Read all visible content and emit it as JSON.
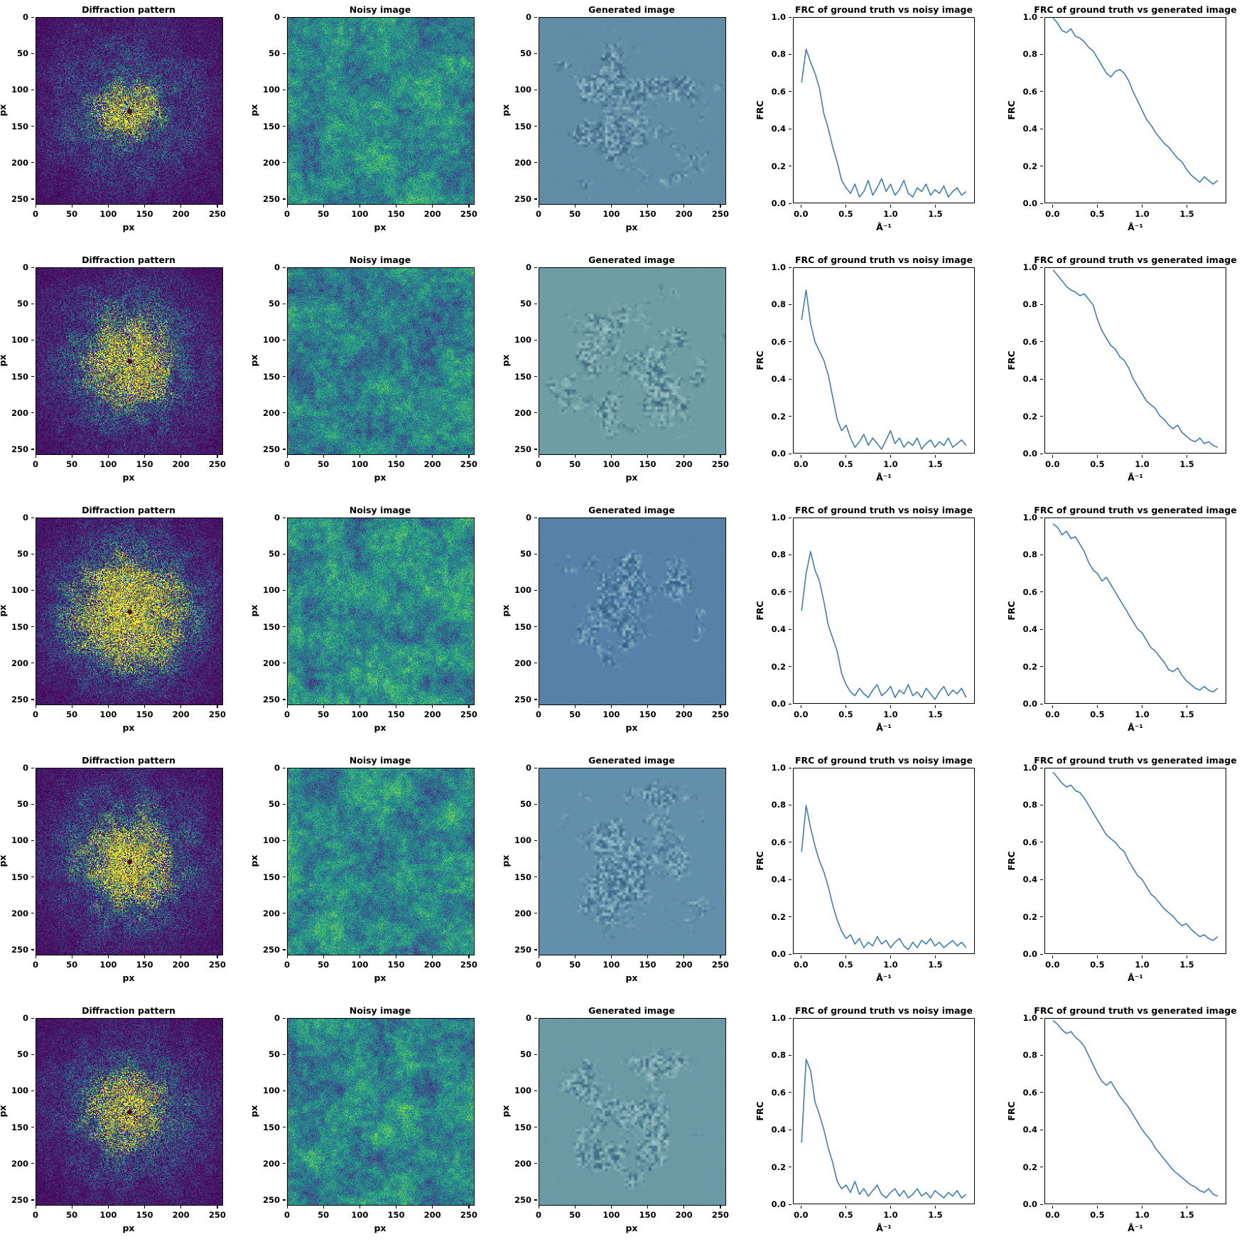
{
  "figure": {
    "rows": 5,
    "panel_titles": [
      "Diffraction pattern",
      "Noisy image",
      "Generated image",
      "FRC of ground truth vs noisy image",
      "FRC of ground truth vs generated image"
    ],
    "colormap": "viridis",
    "line_color": "#3f7cba",
    "image_axis": {
      "label": "px",
      "tick_labels": [
        "0",
        "50",
        "100",
        "150",
        "200",
        "250"
      ],
      "tick_values": [
        0,
        50,
        100,
        150,
        200,
        250
      ],
      "range": [
        0,
        256
      ]
    },
    "frc_axis": {
      "xlabel": "Å⁻¹",
      "ylabel": "FRC",
      "x_tick_labels": [
        "0.0",
        "0.5",
        "1.0",
        "1.5"
      ],
      "x_tick_values": [
        0,
        0.5,
        1.0,
        1.5
      ],
      "y_tick_labels": [
        "0.0",
        "0.2",
        "0.4",
        "0.6",
        "0.8",
        "1.0"
      ],
      "y_tick_values": [
        0,
        0.2,
        0.4,
        0.6,
        0.8,
        1.0
      ],
      "xlim": [
        -0.09,
        1.94
      ],
      "ylim": [
        0,
        1
      ]
    }
  },
  "image_panels": {
    "diffraction": {
      "description": "Speckled X-ray diffraction pattern: bright yellow central speckle cloud, dark red beamstop dot at center, dark purple background (viridis colormap), axes in px 0-255",
      "per_row": [
        {
          "seed": 101,
          "radius": 30,
          "amp": 1.0
        },
        {
          "seed": 202,
          "radius": 42,
          "amp": 1.15
        },
        {
          "seed": 303,
          "radius": 58,
          "amp": 1.25
        },
        {
          "seed": 404,
          "radius": 46,
          "amp": 1.15
        },
        {
          "seed": 505,
          "radius": 36,
          "amp": 1.05
        }
      ]
    },
    "noisy": {
      "description": "Low-SNR noisy real-space image, teal-green speckle with faint low-frequency blobs, axes in px 0-255",
      "per_row": [
        {
          "seed": 11
        },
        {
          "seed": 22
        },
        {
          "seed": 33
        },
        {
          "seed": 44
        },
        {
          "seed": 55
        }
      ]
    },
    "generated": {
      "description": "Generated (denoised) particle image: irregular textured particle blob on smooth blue background, axes in px 0-255",
      "per_row": [
        {
          "seed": 7,
          "bg": [
            97,
            141,
            166
          ]
        },
        {
          "seed": 17,
          "bg": [
            110,
            158,
            163
          ]
        },
        {
          "seed": 27,
          "bg": [
            86,
            130,
            168
          ]
        },
        {
          "seed": 37,
          "bg": [
            97,
            144,
            170
          ]
        },
        {
          "seed": 47,
          "bg": [
            106,
            154,
            164
          ]
        }
      ]
    }
  },
  "chart_data": {
    "type": "line",
    "xlabel": "Å⁻¹",
    "ylabel": "FRC",
    "x_start": 0,
    "x_step": 0.05,
    "n_points": 38,
    "xlim": [
      -0.09,
      1.94
    ],
    "ylim": [
      0,
      1
    ],
    "legend": "none",
    "grid": false,
    "rows": [
      {
        "noisy_frc": [
          0.65,
          0.83,
          0.76,
          0.7,
          0.62,
          0.48,
          0.4,
          0.3,
          0.22,
          0.12,
          0.08,
          0.05,
          0.1,
          0.03,
          0.06,
          0.12,
          0.04,
          0.08,
          0.13,
          0.06,
          0.1,
          0.04,
          0.07,
          0.12,
          0.05,
          0.03,
          0.08,
          0.06,
          0.1,
          0.04,
          0.07,
          0.05,
          0.09,
          0.03,
          0.06,
          0.08,
          0.04,
          0.06
        ],
        "generated_frc": [
          1.0,
          0.97,
          0.93,
          0.92,
          0.94,
          0.9,
          0.89,
          0.87,
          0.84,
          0.82,
          0.78,
          0.74,
          0.7,
          0.68,
          0.71,
          0.72,
          0.7,
          0.66,
          0.6,
          0.55,
          0.5,
          0.45,
          0.42,
          0.38,
          0.35,
          0.32,
          0.3,
          0.27,
          0.24,
          0.22,
          0.18,
          0.15,
          0.13,
          0.11,
          0.14,
          0.12,
          0.1,
          0.12
        ]
      },
      {
        "noisy_frc": [
          0.72,
          0.88,
          0.7,
          0.6,
          0.55,
          0.5,
          0.42,
          0.3,
          0.18,
          0.12,
          0.15,
          0.08,
          0.03,
          0.06,
          0.1,
          0.04,
          0.08,
          0.05,
          0.02,
          0.07,
          0.12,
          0.05,
          0.08,
          0.03,
          0.06,
          0.04,
          0.08,
          0.02,
          0.05,
          0.07,
          0.03,
          0.06,
          0.04,
          0.08,
          0.03,
          0.05,
          0.07,
          0.04
        ],
        "generated_frc": [
          0.99,
          0.96,
          0.93,
          0.9,
          0.88,
          0.87,
          0.85,
          0.86,
          0.83,
          0.8,
          0.72,
          0.66,
          0.62,
          0.58,
          0.56,
          0.52,
          0.5,
          0.46,
          0.4,
          0.36,
          0.32,
          0.28,
          0.26,
          0.24,
          0.2,
          0.18,
          0.15,
          0.13,
          0.15,
          0.11,
          0.09,
          0.07,
          0.06,
          0.08,
          0.05,
          0.06,
          0.04,
          0.03
        ]
      },
      {
        "noisy_frc": [
          0.5,
          0.7,
          0.82,
          0.72,
          0.66,
          0.55,
          0.42,
          0.35,
          0.28,
          0.16,
          0.1,
          0.06,
          0.04,
          0.08,
          0.05,
          0.03,
          0.07,
          0.1,
          0.04,
          0.06,
          0.09,
          0.03,
          0.07,
          0.05,
          0.1,
          0.04,
          0.06,
          0.03,
          0.08,
          0.05,
          0.02,
          0.06,
          0.09,
          0.04,
          0.07,
          0.05,
          0.08,
          0.03
        ],
        "generated_frc": [
          0.97,
          0.95,
          0.91,
          0.93,
          0.89,
          0.9,
          0.86,
          0.82,
          0.76,
          0.72,
          0.7,
          0.66,
          0.68,
          0.64,
          0.6,
          0.56,
          0.52,
          0.48,
          0.44,
          0.4,
          0.38,
          0.34,
          0.3,
          0.28,
          0.25,
          0.22,
          0.18,
          0.17,
          0.19,
          0.15,
          0.12,
          0.1,
          0.08,
          0.07,
          0.09,
          0.07,
          0.06,
          0.08
        ]
      },
      {
        "noisy_frc": [
          0.55,
          0.8,
          0.68,
          0.58,
          0.5,
          0.44,
          0.36,
          0.26,
          0.18,
          0.12,
          0.08,
          0.1,
          0.05,
          0.08,
          0.03,
          0.06,
          0.04,
          0.09,
          0.05,
          0.07,
          0.03,
          0.06,
          0.08,
          0.04,
          0.02,
          0.06,
          0.03,
          0.07,
          0.05,
          0.08,
          0.04,
          0.06,
          0.03,
          0.05,
          0.07,
          0.04,
          0.06,
          0.03
        ],
        "generated_frc": [
          0.98,
          0.95,
          0.92,
          0.9,
          0.91,
          0.88,
          0.87,
          0.84,
          0.8,
          0.76,
          0.72,
          0.68,
          0.64,
          0.62,
          0.6,
          0.57,
          0.55,
          0.5,
          0.46,
          0.42,
          0.4,
          0.36,
          0.32,
          0.3,
          0.27,
          0.24,
          0.22,
          0.2,
          0.17,
          0.15,
          0.16,
          0.13,
          0.11,
          0.09,
          0.1,
          0.08,
          0.07,
          0.09
        ]
      },
      {
        "noisy_frc": [
          0.33,
          0.78,
          0.72,
          0.55,
          0.48,
          0.4,
          0.3,
          0.22,
          0.12,
          0.08,
          0.1,
          0.06,
          0.12,
          0.05,
          0.08,
          0.04,
          0.07,
          0.1,
          0.05,
          0.03,
          0.06,
          0.08,
          0.04,
          0.07,
          0.03,
          0.05,
          0.08,
          0.04,
          0.06,
          0.03,
          0.07,
          0.05,
          0.03,
          0.06,
          0.04,
          0.07,
          0.03,
          0.05
        ],
        "generated_frc": [
          0.99,
          0.97,
          0.94,
          0.92,
          0.93,
          0.9,
          0.88,
          0.85,
          0.8,
          0.75,
          0.7,
          0.66,
          0.64,
          0.66,
          0.62,
          0.58,
          0.55,
          0.52,
          0.48,
          0.44,
          0.4,
          0.37,
          0.34,
          0.3,
          0.27,
          0.24,
          0.21,
          0.18,
          0.16,
          0.14,
          0.12,
          0.1,
          0.09,
          0.07,
          0.06,
          0.08,
          0.05,
          0.04
        ]
      }
    ]
  }
}
